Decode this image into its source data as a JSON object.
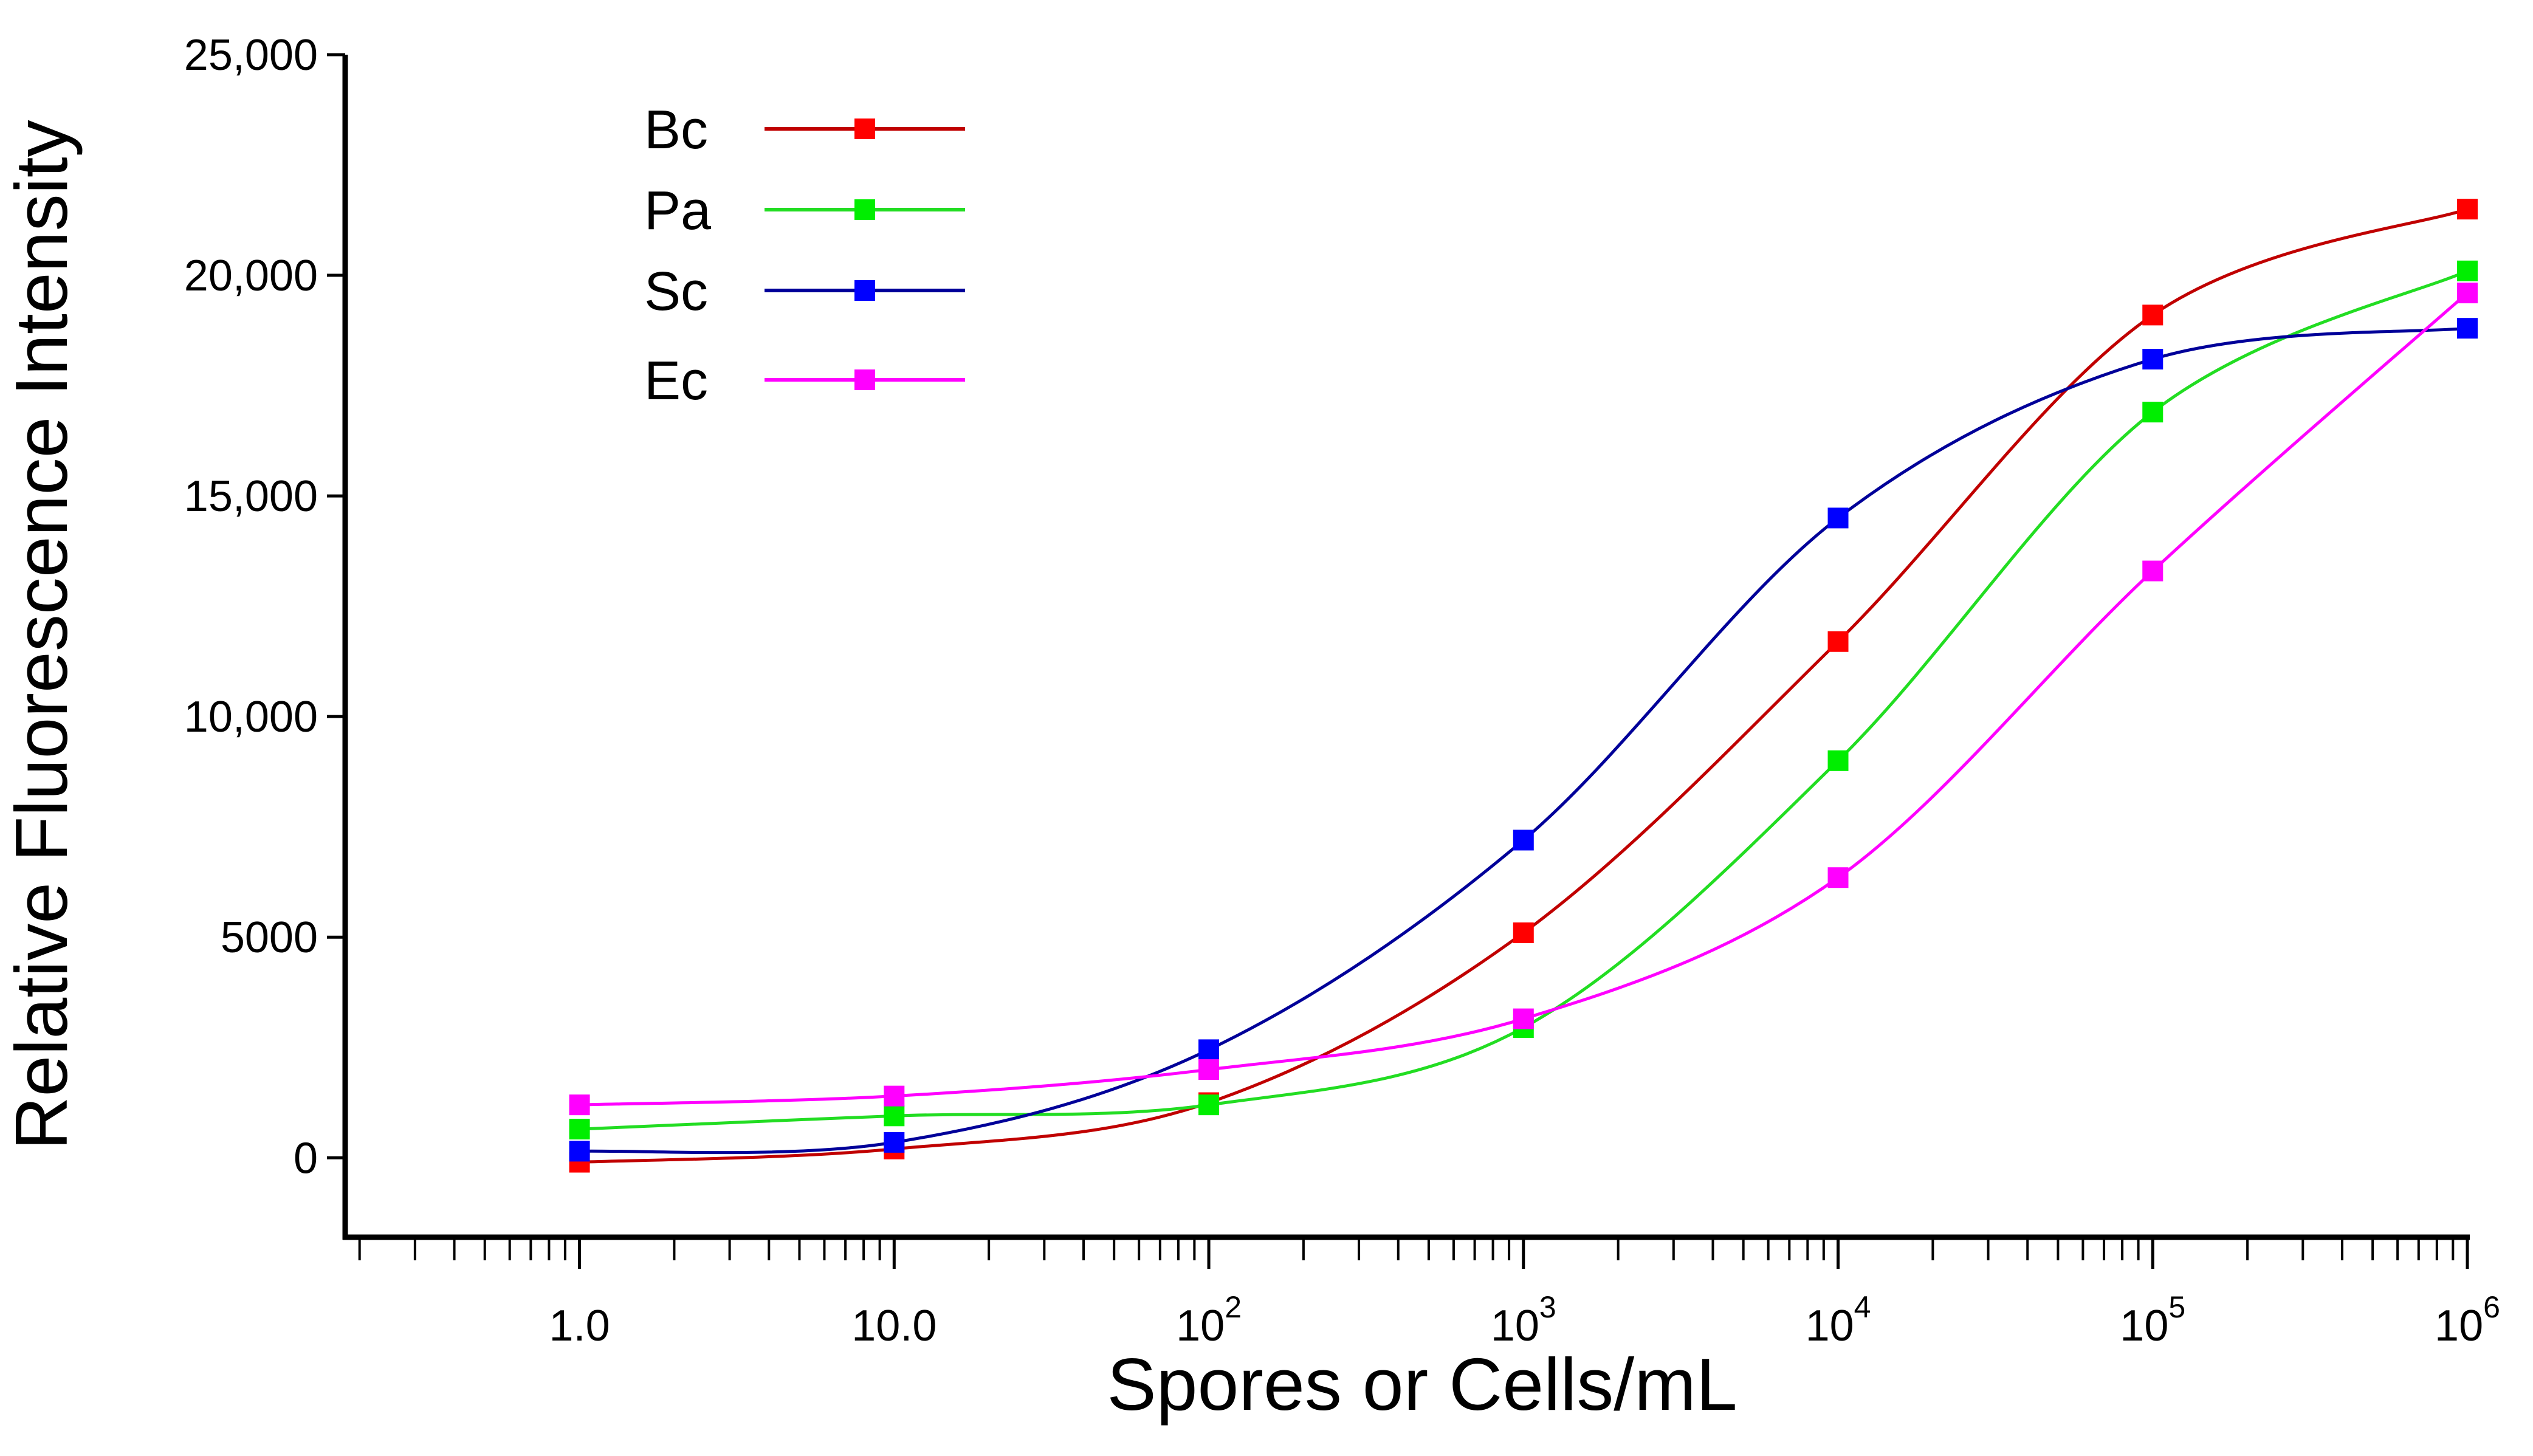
{
  "chart_data": {
    "type": "line",
    "title": "",
    "xlabel": "Spores or Cells/mL",
    "ylabel": "Relative Fluorescence Intensity",
    "xscale": "log",
    "xlim": [
      0.18,
      1000000
    ],
    "ylim": [
      -1800,
      25000
    ],
    "grid": false,
    "legend_position": "top-left",
    "x": [
      1,
      10,
      100,
      1000,
      10000,
      100000,
      1000000
    ],
    "x_tick_labels": [
      {
        "base": "1.0",
        "exp": ""
      },
      {
        "base": "10.0",
        "exp": ""
      },
      {
        "base": "10",
        "exp": "2"
      },
      {
        "base": "10",
        "exp": "3"
      },
      {
        "base": "10",
        "exp": "4"
      },
      {
        "base": "10",
        "exp": "5"
      },
      {
        "base": "10",
        "exp": "6"
      }
    ],
    "y_ticks": [
      0,
      5000,
      10000,
      15000,
      20000,
      25000
    ],
    "y_tick_labels": [
      "0",
      "5000",
      "10,000",
      "15,000",
      "20,000",
      "25,000"
    ],
    "series": [
      {
        "name": "Bc",
        "color": "#ff0000",
        "line_color": "#c00000",
        "values": [
          -100,
          200,
          1250,
          5100,
          11700,
          19100,
          21500
        ]
      },
      {
        "name": "Pa",
        "color": "#00ee00",
        "line_color": "#22dd22",
        "values": [
          650,
          950,
          1200,
          2950,
          9000,
          16900,
          20100
        ]
      },
      {
        "name": "Sc",
        "color": "#0000ff",
        "line_color": "#000099",
        "values": [
          150,
          350,
          2450,
          7200,
          14500,
          18100,
          18800
        ]
      },
      {
        "name": "Ec",
        "color": "#ff00ff",
        "line_color": "#ff00ff",
        "values": [
          1200,
          1400,
          2000,
          3150,
          6350,
          13300,
          19600
        ]
      }
    ]
  }
}
